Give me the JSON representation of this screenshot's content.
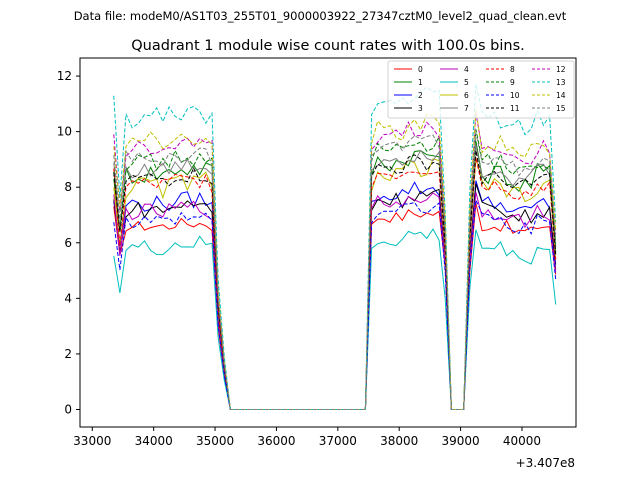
{
  "chart_data": {
    "type": "line",
    "suptitle": "Data file: modeM0/AS1T03_255T01_9000003922_27347cztM0_level2_quad_clean.evt",
    "title": "Quadrant 1 module wise count rates with 100.0s bins.",
    "xlabel": "",
    "ylabel": "",
    "x_offset_label": "+3.407e8",
    "xlim": [
      32800,
      40880
    ],
    "ylim": [
      -0.63,
      12.65
    ],
    "xticks": [
      33000,
      34000,
      35000,
      36000,
      37000,
      38000,
      39000,
      40000
    ],
    "yticks": [
      0,
      2,
      4,
      6,
      8,
      10,
      12
    ],
    "legend_loc": "upper right",
    "x_start": 33350,
    "x_step": 100,
    "series": [
      {
        "name": "0",
        "color": "#ff0000",
        "dashed": false,
        "level": 6.6,
        "dip": 5.4,
        "amp": 0.2
      },
      {
        "name": "1",
        "color": "#008000",
        "dashed": false,
        "level": 8.5,
        "dip": 6.3,
        "amp": 0.4
      },
      {
        "name": "2",
        "color": "#0000ff",
        "dashed": false,
        "level": 7.4,
        "dip": 5.8,
        "amp": 0.3
      },
      {
        "name": "3",
        "color": "#000000",
        "dashed": false,
        "level": 7.2,
        "dip": 5.6,
        "amp": 0.3
      },
      {
        "name": "4",
        "color": "#bf00bf",
        "dashed": false,
        "level": 7.1,
        "dip": 5.5,
        "amp": 0.3
      },
      {
        "name": "5",
        "color": "#00bfbf",
        "dashed": false,
        "level": 5.8,
        "dip": 4.2,
        "amp": 0.3
      },
      {
        "name": "6",
        "color": "#bfbf00",
        "dashed": false,
        "level": 8.0,
        "dip": 6.0,
        "amp": 0.4
      },
      {
        "name": "7",
        "color": "#808080",
        "dashed": false,
        "level": 8.6,
        "dip": 6.5,
        "amp": 0.3
      },
      {
        "name": "8",
        "color": "#ff0000",
        "dashed": true,
        "level": 8.1,
        "dip": 6.0,
        "amp": 0.3
      },
      {
        "name": "9",
        "color": "#008000",
        "dashed": true,
        "level": 8.9,
        "dip": 6.6,
        "amp": 0.3
      },
      {
        "name": "10",
        "color": "#0000ff",
        "dashed": true,
        "level": 6.8,
        "dip": 5.2,
        "amp": 0.3
      },
      {
        "name": "11",
        "color": "#000000",
        "dashed": true,
        "level": 8.3,
        "dip": 6.2,
        "amp": 0.3
      },
      {
        "name": "12",
        "color": "#bf00bf",
        "dashed": true,
        "level": 9.4,
        "dip": 7.0,
        "amp": 0.3
      },
      {
        "name": "13",
        "color": "#00bfbf",
        "dashed": true,
        "level": 10.5,
        "dip": 7.5,
        "amp": 0.4
      },
      {
        "name": "14",
        "color": "#bfbf00",
        "dashed": true,
        "level": 9.6,
        "dip": 7.2,
        "amp": 0.4
      },
      {
        "name": "15",
        "color": "#808080",
        "dashed": true,
        "level": 9.0,
        "dip": 6.8,
        "amp": 0.3
      }
    ],
    "segments_note": "Active 33350-35050 and 37550-38650 and 39150-40550; dropout 35150-37450 and 38850-39050 (value 0)."
  }
}
